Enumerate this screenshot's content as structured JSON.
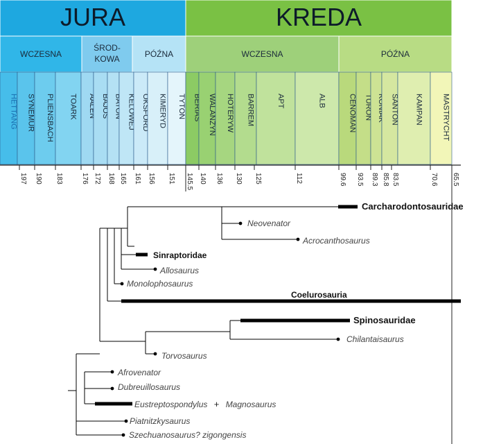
{
  "periods": [
    {
      "label": "JURA",
      "fill": "#1ea8e0"
    },
    {
      "label": "KREDA",
      "fill": "#7ac144"
    }
  ],
  "epochs": [
    {
      "label": "WCZESNA",
      "fill": "#30b6e8"
    },
    {
      "label": "ŚROD-\nKOWA",
      "fill": "#7fcbee"
    },
    {
      "label": "PÓŹNA",
      "fill": "#b5e3f6"
    },
    {
      "label": "WCZESNA",
      "fill": "#9ed07a"
    },
    {
      "label": "PÓŹNA",
      "fill": "#b8dc84"
    }
  ],
  "stages": [
    {
      "label": "HETTANG",
      "fill": "#46bdea",
      "text_color": "#1a6fb0"
    },
    {
      "label": "SYNEMUR",
      "fill": "#5ac4ec"
    },
    {
      "label": "PLIENSBACH",
      "fill": "#6dccee"
    },
    {
      "label": "TOARK",
      "fill": "#82d4f1"
    },
    {
      "label": "AALEN",
      "fill": "#9fd9f2"
    },
    {
      "label": "BAJOS",
      "fill": "#a9ddf3"
    },
    {
      "label": "BATON",
      "fill": "#b4e1f4"
    },
    {
      "label": "KELOWEJ",
      "fill": "#bfe6f6"
    },
    {
      "label": "OKSFORD",
      "fill": "#cbeaf8"
    },
    {
      "label": "KIMERYD",
      "fill": "#d8f0f9"
    },
    {
      "label": "TYTON",
      "fill": "#e4f5fb"
    },
    {
      "label": "BERIAS",
      "fill": "#8ccb64"
    },
    {
      "label": "WALANŻYN",
      "fill": "#99d172"
    },
    {
      "label": "HOTERYW",
      "fill": "#a6d680"
    },
    {
      "label": "BARREM",
      "fill": "#b3dc8e"
    },
    {
      "label": "APT",
      "fill": "#c0e29c"
    },
    {
      "label": "ALB",
      "fill": "#cde8ab"
    },
    {
      "label": "CENOMAN",
      "fill": "#b9d97c"
    },
    {
      "label": "TURON",
      "fill": "#c4de88"
    },
    {
      "label": "KONIAK",
      "fill": "#cde394"
    },
    {
      "label": "SANTON",
      "fill": "#d5e7a0"
    },
    {
      "label": "KAMPAN",
      "fill": "#dfeeb0"
    },
    {
      "label": "MASTRYCHT",
      "fill": "#f2f6b8"
    }
  ],
  "age_ticks": [
    "197",
    "190",
    "183",
    "176",
    "172",
    "168",
    "165",
    "161",
    "156",
    "151",
    "145.5",
    "140",
    "136",
    "130",
    "125",
    "112",
    "99.6",
    "93.5",
    "89.3",
    "85.8",
    "83.5",
    "70.6",
    "65.5"
  ],
  "taxa": {
    "carcharodontosauridae": "Carcharodontosauridae",
    "neovenator": "Neovenator",
    "acrocanthosaurus": "Acrocanthosaurus",
    "sinraptoridae": "Sinraptoridae",
    "allosaurus": "Allosaurus",
    "monolophosaurus": "Monolophosaurus",
    "coelurosauria": "Coelurosauria",
    "spinosauridae": "Spinosauridae",
    "chilantaisaurus": "Chilantaisaurus",
    "torvosaurus": "Torvosaurus",
    "afrovenator": "Afrovenator",
    "dubreuillosaurus": "Dubreuillosaurus",
    "eustreptospondylus": "Eustreptospondylus",
    "plus_sign": "+",
    "magnosaurus": "Magnosaurus",
    "piatnitzkysaurus": "Piatnitzkysaurus",
    "szechuanosaurus": "Szechuanosaurus? zigongensis"
  },
  "colors": {
    "divider": "#ffffff",
    "period_text": "#0d1b2a",
    "tree_line": "#000000",
    "label_text": "#444444"
  }
}
